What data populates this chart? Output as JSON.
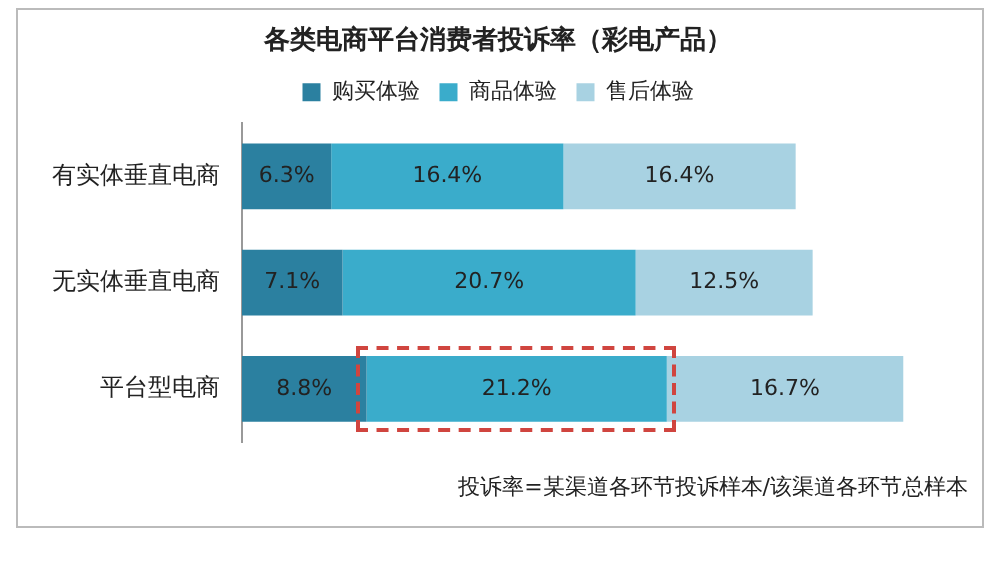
{
  "chart_data": {
    "type": "bar",
    "orientation": "horizontal",
    "stacked": true,
    "title": "各类电商平台消费者投诉率（彩电产品）",
    "categories": [
      "有实体垂直电商",
      "无实体垂直电商",
      "平台型电商"
    ],
    "series": [
      {
        "name": "购买体验",
        "color": "#2b80a0",
        "values": [
          6.3,
          7.1,
          8.8
        ],
        "value_labels": [
          "6.3%",
          "7.1%",
          "8.8%"
        ]
      },
      {
        "name": "商品体验",
        "color": "#3aaccb",
        "values": [
          16.4,
          20.7,
          21.2
        ],
        "value_labels": [
          "16.4%",
          "20.7%",
          "21.2%"
        ]
      },
      {
        "name": "售后体验",
        "color": "#a8d2e2",
        "values": [
          16.4,
          12.5,
          16.7
        ],
        "value_labels": [
          "16.4%",
          "12.5%",
          "16.7%"
        ]
      }
    ],
    "legend": "top",
    "annotations": [
      "投诉率=某渠道各环节投诉样本/该渠道各环节总样本"
    ]
  }
}
